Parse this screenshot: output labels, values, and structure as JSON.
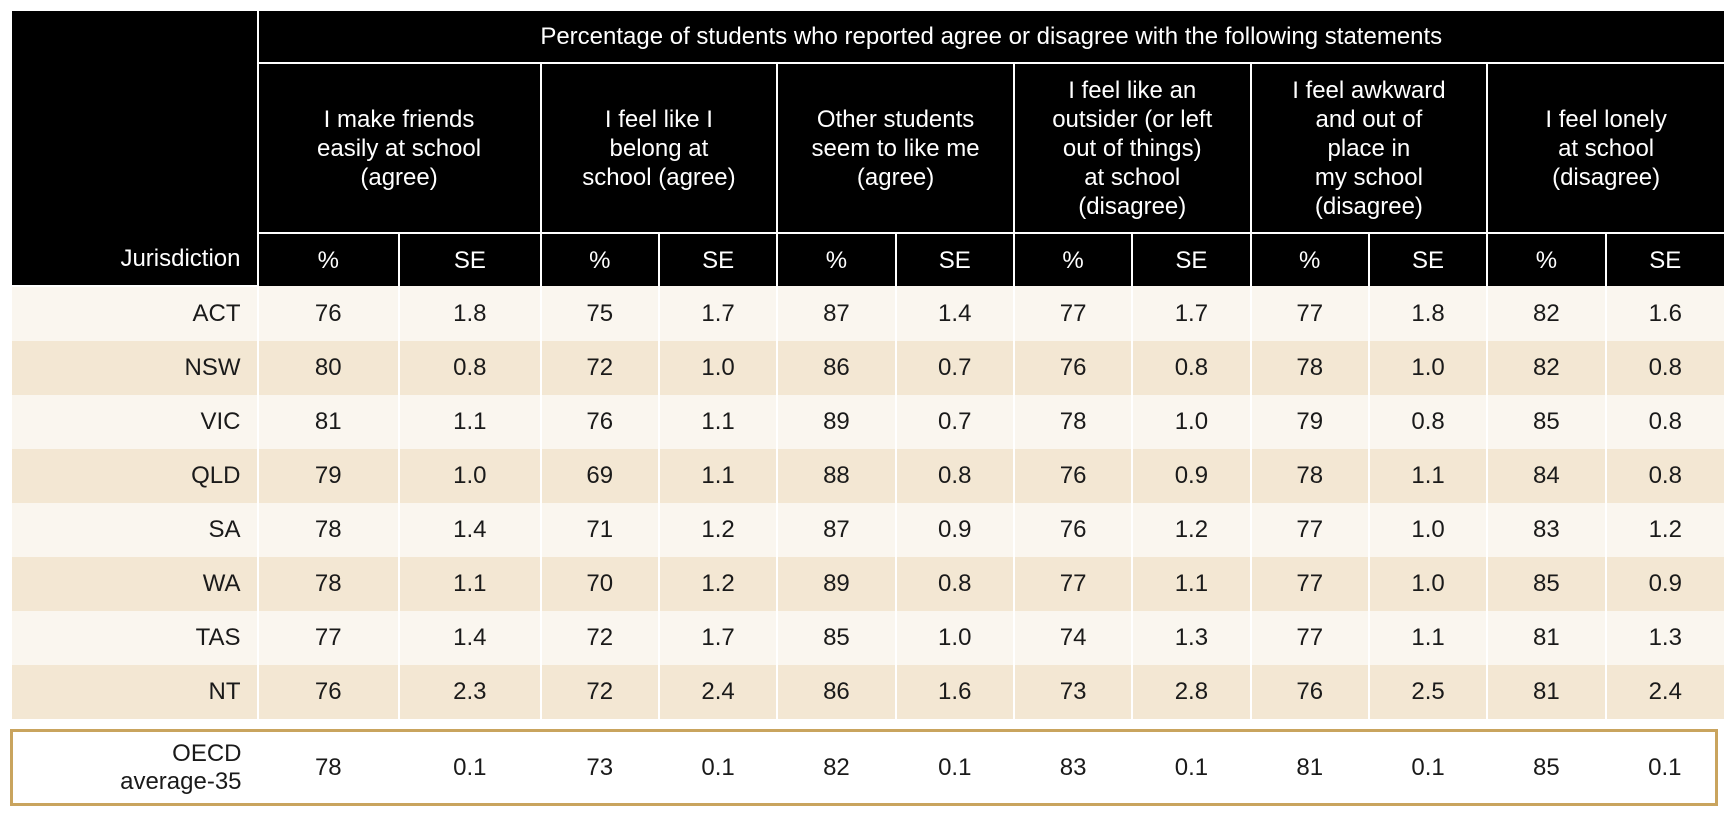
{
  "table": {
    "title": "Percentage of students who reported agree or disagree with the following statements",
    "jurisdiction_label": "Jurisdiction",
    "pct_label": "%",
    "se_label": "SE",
    "statements": [
      {
        "lines": [
          "I make friends",
          "easily at school",
          "(agree)"
        ]
      },
      {
        "lines": [
          "I feel like I",
          "belong at",
          "school (agree)"
        ]
      },
      {
        "lines": [
          "Other students",
          "seem to like me",
          "(agree)"
        ]
      },
      {
        "lines": [
          "I feel like an",
          "outsider (or left",
          "out of things)",
          "at school",
          "(disagree)"
        ]
      },
      {
        "lines": [
          "I feel awkward",
          "and out of",
          "place in",
          "my school",
          "(disagree)"
        ]
      },
      {
        "lines": [
          "I feel lonely",
          "at school",
          "(disagree)"
        ]
      }
    ],
    "rows": [
      {
        "jurisdiction": "ACT",
        "values": [
          "76",
          "1.8",
          "75",
          "1.7",
          "87",
          "1.4",
          "77",
          "1.7",
          "77",
          "1.8",
          "82",
          "1.6"
        ]
      },
      {
        "jurisdiction": "NSW",
        "values": [
          "80",
          "0.8",
          "72",
          "1.0",
          "86",
          "0.7",
          "76",
          "0.8",
          "78",
          "1.0",
          "82",
          "0.8"
        ]
      },
      {
        "jurisdiction": "VIC",
        "values": [
          "81",
          "1.1",
          "76",
          "1.1",
          "89",
          "0.7",
          "78",
          "1.0",
          "79",
          "0.8",
          "85",
          "0.8"
        ]
      },
      {
        "jurisdiction": "QLD",
        "values": [
          "79",
          "1.0",
          "69",
          "1.1",
          "88",
          "0.8",
          "76",
          "0.9",
          "78",
          "1.1",
          "84",
          "0.8"
        ]
      },
      {
        "jurisdiction": "SA",
        "values": [
          "78",
          "1.4",
          "71",
          "1.2",
          "87",
          "0.9",
          "76",
          "1.2",
          "77",
          "1.0",
          "83",
          "1.2"
        ]
      },
      {
        "jurisdiction": "WA",
        "values": [
          "78",
          "1.1",
          "70",
          "1.2",
          "89",
          "0.8",
          "77",
          "1.1",
          "77",
          "1.0",
          "85",
          "0.9"
        ]
      },
      {
        "jurisdiction": "TAS",
        "values": [
          "77",
          "1.4",
          "72",
          "1.7",
          "85",
          "1.0",
          "74",
          "1.3",
          "77",
          "1.1",
          "81",
          "1.3"
        ]
      },
      {
        "jurisdiction": "NT",
        "values": [
          "76",
          "2.3",
          "72",
          "2.4",
          "86",
          "1.6",
          "73",
          "2.8",
          "76",
          "2.5",
          "81",
          "2.4"
        ]
      }
    ],
    "oecd": {
      "jurisdiction_lines": [
        "OECD",
        "average-35"
      ],
      "values": [
        "78",
        "0.1",
        "73",
        "0.1",
        "82",
        "0.1",
        "83",
        "0.1",
        "81",
        "0.1",
        "85",
        "0.1"
      ]
    }
  },
  "colors": {
    "header_bg": "#000000",
    "header_text": "#ffffff",
    "row_light": "#faf6ef",
    "row_dark": "#f3e7d3",
    "highlight_border": "#c9a45e"
  }
}
